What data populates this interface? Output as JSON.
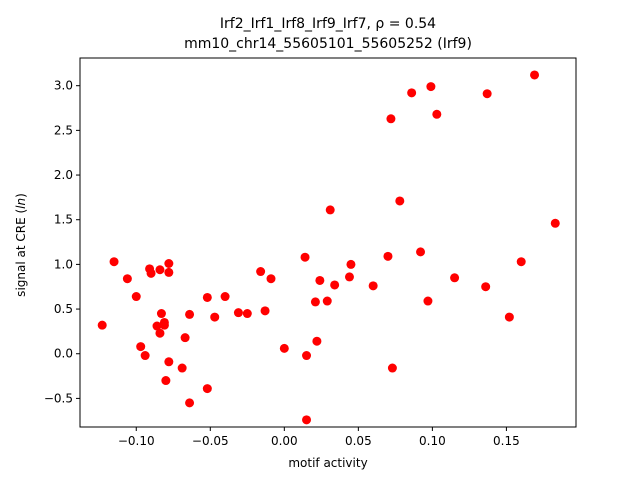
{
  "chart_data": {
    "type": "scatter",
    "title_line1": "Irf2_Irf1_Irf8_Irf9_Irf7, ρ = 0.54",
    "title_line2": "mm10_chr14_55605101_55605252 (Irf9)",
    "xlabel": "motif activity",
    "ylabel_main": "signal at CRE (",
    "ylabel_italic": "ln",
    "ylabel_close": ")",
    "xlim": [
      -0.138,
      0.197
    ],
    "ylim": [
      -0.82,
      3.31
    ],
    "xticks": [
      {
        "value": -0.1,
        "label": "−0.10"
      },
      {
        "value": -0.05,
        "label": "−0.05"
      },
      {
        "value": 0.0,
        "label": "0.00"
      },
      {
        "value": 0.05,
        "label": "0.05"
      },
      {
        "value": 0.1,
        "label": "0.10"
      },
      {
        "value": 0.15,
        "label": "0.15"
      }
    ],
    "yticks": [
      {
        "value": -0.5,
        "label": "−0.5"
      },
      {
        "value": 0.0,
        "label": "0.0"
      },
      {
        "value": 0.5,
        "label": "0.5"
      },
      {
        "value": 1.0,
        "label": "1.0"
      },
      {
        "value": 1.5,
        "label": "1.5"
      },
      {
        "value": 2.0,
        "label": "2.0"
      },
      {
        "value": 2.5,
        "label": "2.5"
      },
      {
        "value": 3.0,
        "label": "3.0"
      }
    ],
    "grid": false,
    "marker_color": "#ff0000",
    "points": [
      {
        "x": -0.123,
        "y": 0.32
      },
      {
        "x": -0.115,
        "y": 1.03
      },
      {
        "x": -0.106,
        "y": 0.84
      },
      {
        "x": -0.1,
        "y": 0.64
      },
      {
        "x": -0.097,
        "y": 0.08
      },
      {
        "x": -0.094,
        "y": -0.02
      },
      {
        "x": -0.091,
        "y": 0.95
      },
      {
        "x": -0.09,
        "y": 0.9
      },
      {
        "x": -0.086,
        "y": 0.31
      },
      {
        "x": -0.084,
        "y": 0.94
      },
      {
        "x": -0.084,
        "y": 0.23
      },
      {
        "x": -0.083,
        "y": 0.45
      },
      {
        "x": -0.081,
        "y": 0.35
      },
      {
        "x": -0.081,
        "y": 0.32
      },
      {
        "x": -0.08,
        "y": -0.3
      },
      {
        "x": -0.078,
        "y": 0.91
      },
      {
        "x": -0.078,
        "y": 1.01
      },
      {
        "x": -0.078,
        "y": -0.09
      },
      {
        "x": -0.069,
        "y": -0.16
      },
      {
        "x": -0.067,
        "y": 0.18
      },
      {
        "x": -0.064,
        "y": 0.44
      },
      {
        "x": -0.064,
        "y": -0.55
      },
      {
        "x": -0.052,
        "y": 0.63
      },
      {
        "x": -0.052,
        "y": -0.39
      },
      {
        "x": -0.047,
        "y": 0.41
      },
      {
        "x": -0.04,
        "y": 0.64
      },
      {
        "x": -0.031,
        "y": 0.46
      },
      {
        "x": -0.025,
        "y": 0.45
      },
      {
        "x": -0.016,
        "y": 0.92
      },
      {
        "x": -0.013,
        "y": 0.48
      },
      {
        "x": -0.009,
        "y": 0.84
      },
      {
        "x": 0.0,
        "y": 0.06
      },
      {
        "x": 0.014,
        "y": 1.08
      },
      {
        "x": 0.015,
        "y": -0.02
      },
      {
        "x": 0.015,
        "y": -0.74
      },
      {
        "x": 0.021,
        "y": 0.58
      },
      {
        "x": 0.022,
        "y": 0.14
      },
      {
        "x": 0.024,
        "y": 0.82
      },
      {
        "x": 0.029,
        "y": 0.59
      },
      {
        "x": 0.031,
        "y": 1.61
      },
      {
        "x": 0.034,
        "y": 0.77
      },
      {
        "x": 0.044,
        "y": 0.86
      },
      {
        "x": 0.045,
        "y": 1.0
      },
      {
        "x": 0.06,
        "y": 0.76
      },
      {
        "x": 0.07,
        "y": 1.09
      },
      {
        "x": 0.072,
        "y": 2.63
      },
      {
        "x": 0.073,
        "y": -0.16
      },
      {
        "x": 0.078,
        "y": 1.71
      },
      {
        "x": 0.086,
        "y": 2.92
      },
      {
        "x": 0.092,
        "y": 1.14
      },
      {
        "x": 0.097,
        "y": 0.59
      },
      {
        "x": 0.099,
        "y": 2.99
      },
      {
        "x": 0.103,
        "y": 2.68
      },
      {
        "x": 0.115,
        "y": 0.85
      },
      {
        "x": 0.136,
        "y": 0.75
      },
      {
        "x": 0.137,
        "y": 2.91
      },
      {
        "x": 0.152,
        "y": 0.41
      },
      {
        "x": 0.16,
        "y": 1.03
      },
      {
        "x": 0.169,
        "y": 3.12
      },
      {
        "x": 0.183,
        "y": 1.46
      }
    ]
  }
}
